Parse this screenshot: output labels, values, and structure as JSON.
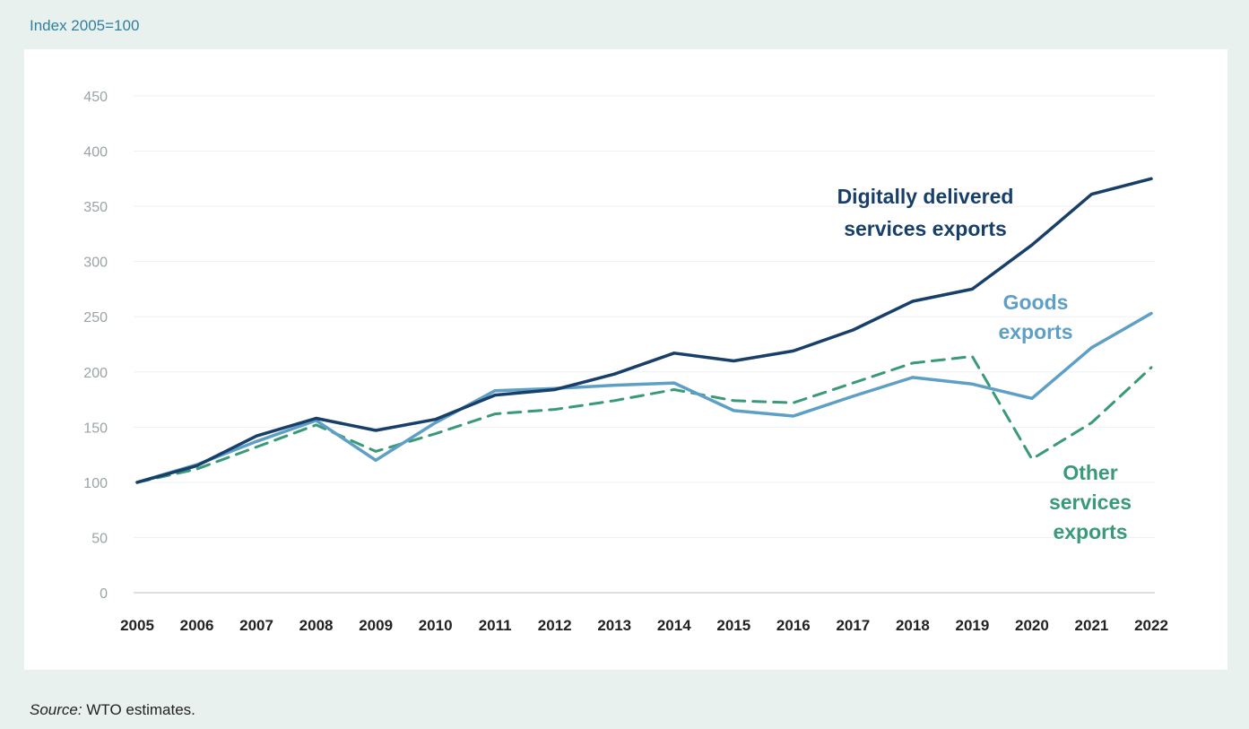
{
  "header": {
    "index_label": "Index 2005=100"
  },
  "footer": {
    "source_prefix": "Source:",
    "source_text": "WTO estimates."
  },
  "chart_data": {
    "type": "line",
    "title": "",
    "xlabel": "",
    "ylabel": "Index 2005=100",
    "ylim": [
      0,
      450
    ],
    "yticks": [
      0,
      50,
      100,
      150,
      200,
      250,
      300,
      350,
      400,
      450
    ],
    "grid": true,
    "categories": [
      "2005",
      "2006",
      "2007",
      "2008",
      "2009",
      "2010",
      "2011",
      "2012",
      "2013",
      "2014",
      "2015",
      "2016",
      "2017",
      "2018",
      "2019",
      "2020",
      "2021",
      "2022"
    ],
    "series": [
      {
        "name": "Digitally delivered services exports",
        "label_lines": [
          "Digitally delivered",
          "services exports"
        ],
        "color": "#173f6a",
        "dash": false,
        "values": [
          100,
          115,
          142,
          158,
          147,
          157,
          179,
          184,
          198,
          217,
          210,
          219,
          238,
          264,
          275,
          315,
          361,
          375
        ]
      },
      {
        "name": "Goods exports",
        "label_lines": [
          "Goods",
          "exports"
        ],
        "color": "#5e9fc6",
        "dash": false,
        "values": [
          100,
          116,
          137,
          156,
          120,
          154,
          183,
          185,
          188,
          190,
          165,
          160,
          178,
          195,
          189,
          176,
          222,
          253
        ]
      },
      {
        "name": "Other services exports",
        "label_lines": [
          "Other",
          "services",
          "exports"
        ],
        "color": "#3a9a78",
        "dash": true,
        "values": [
          100,
          112,
          132,
          152,
          128,
          144,
          162,
          166,
          174,
          184,
          174,
          172,
          190,
          208,
          214,
          121,
          154,
          204
        ]
      }
    ]
  }
}
